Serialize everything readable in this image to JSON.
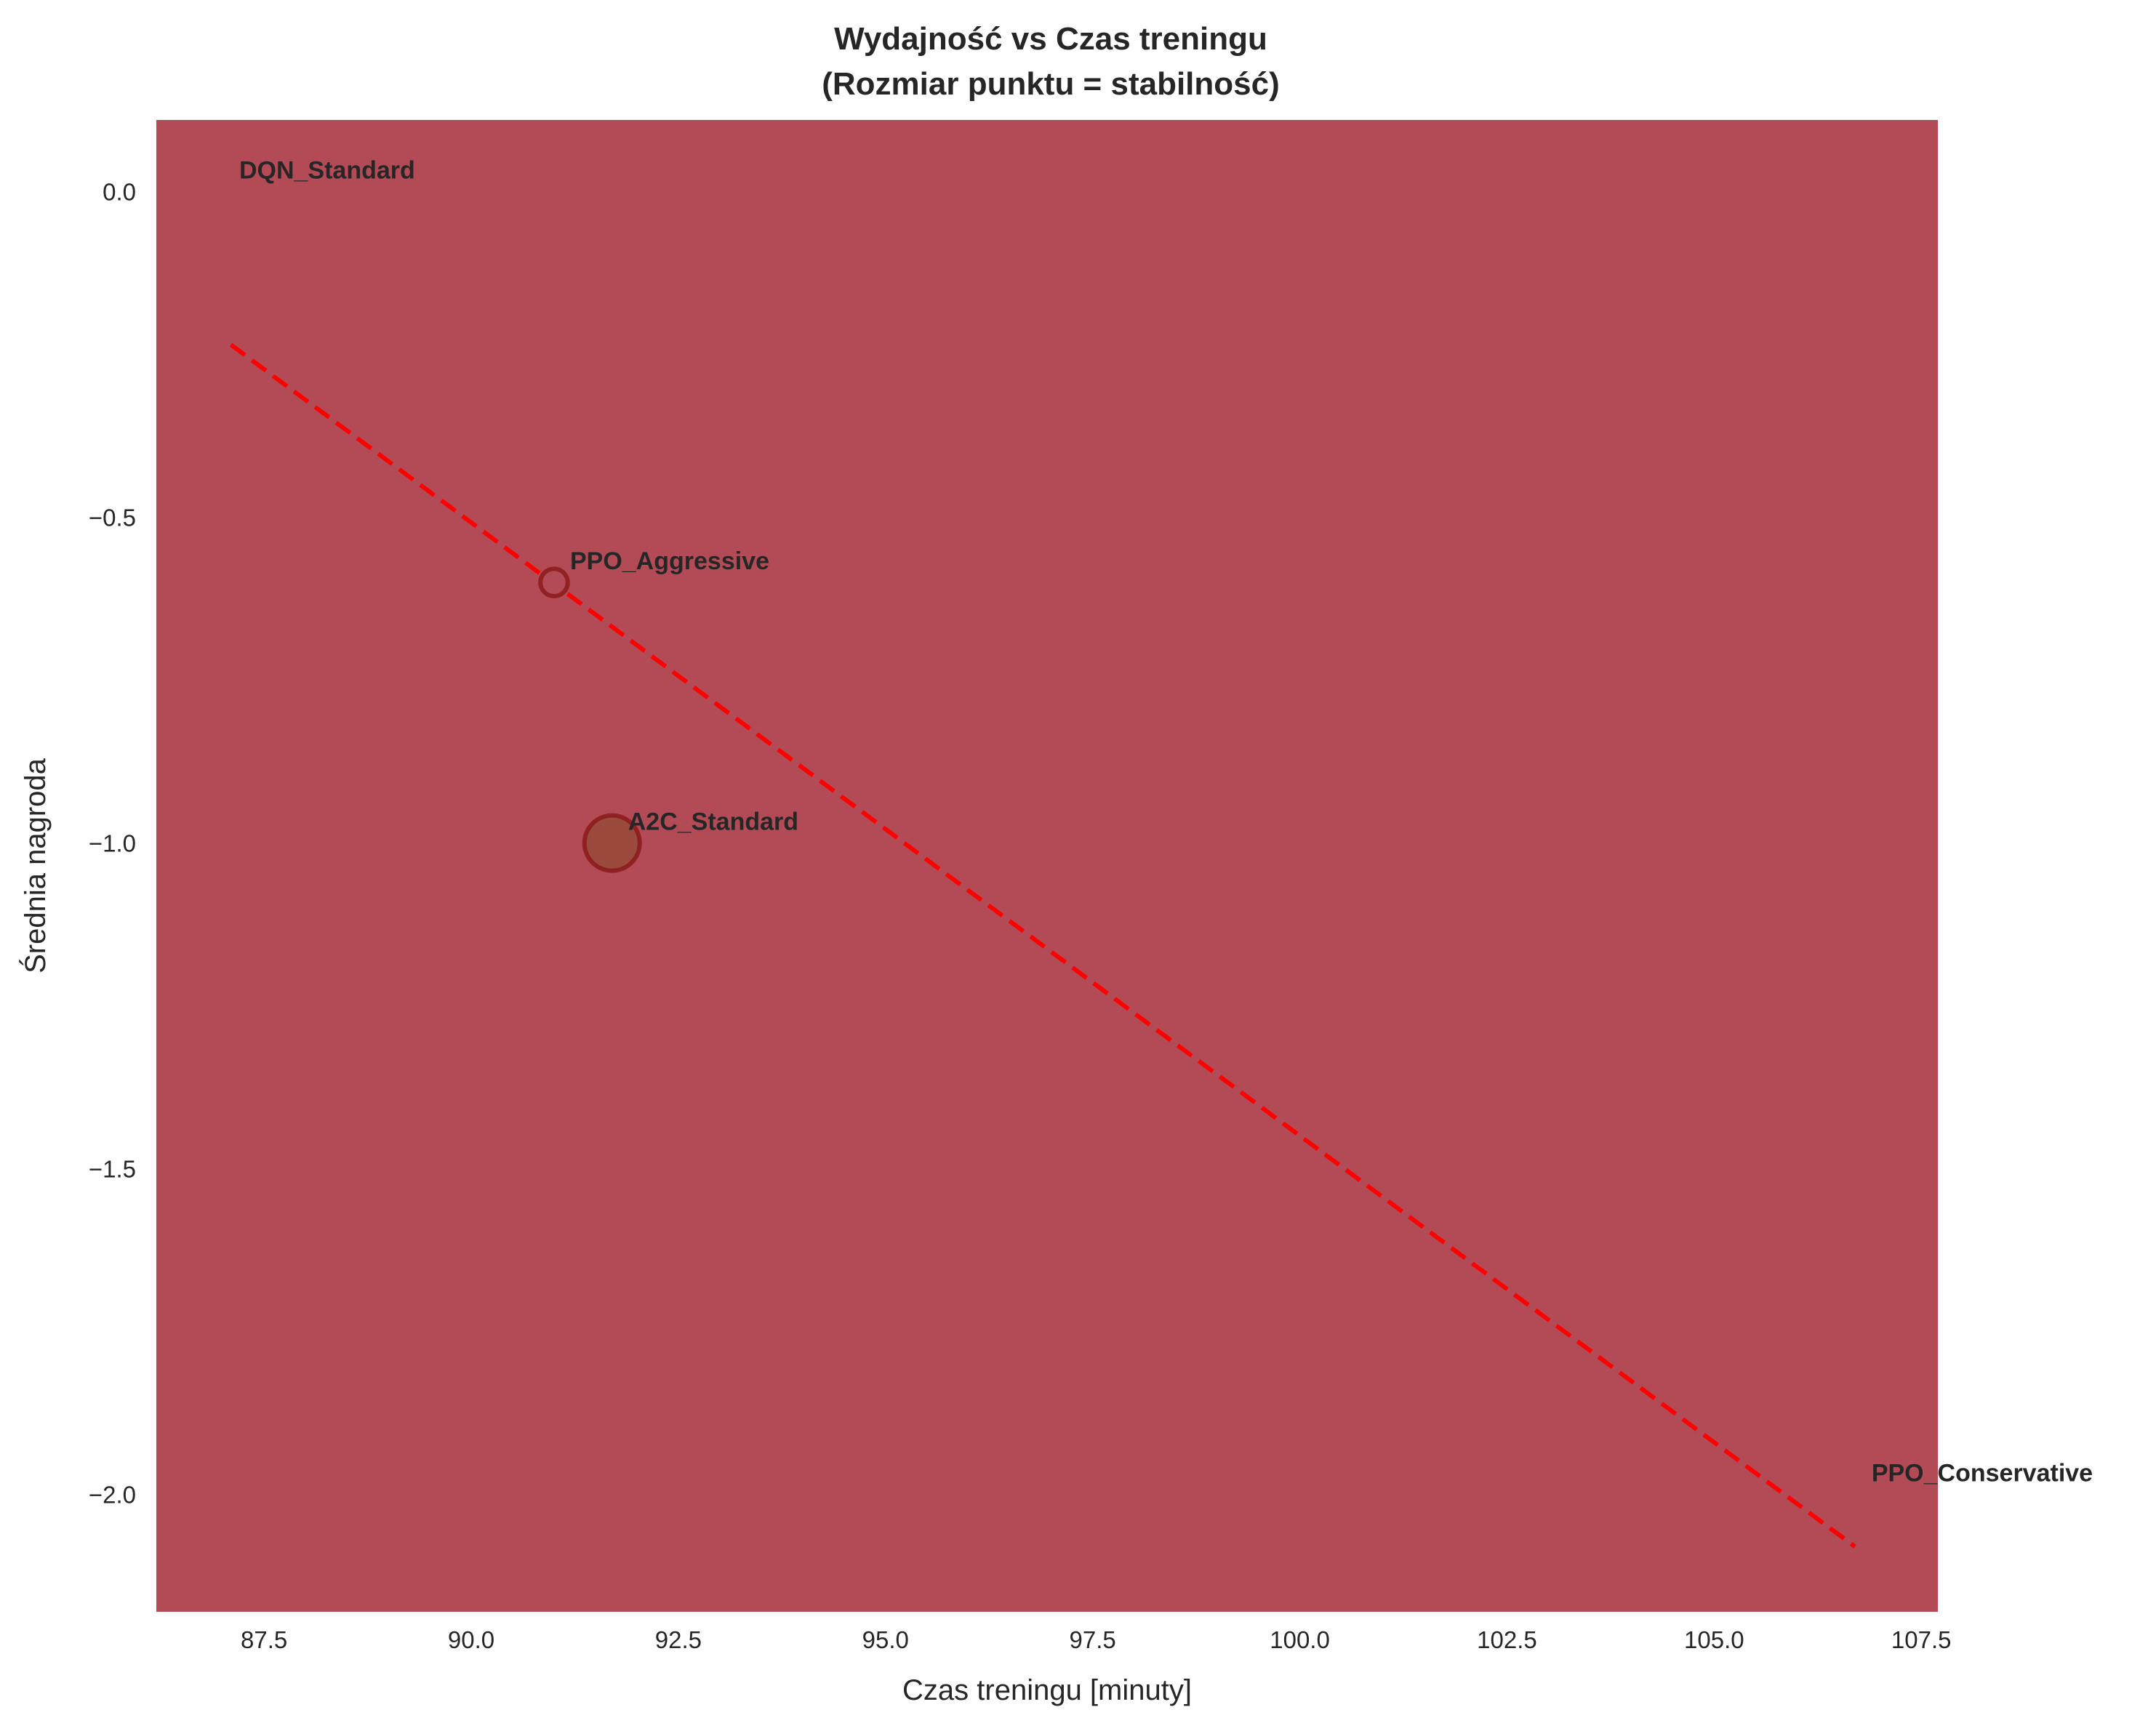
{
  "chart_data": {
    "type": "scatter",
    "title_line1": "Wydajność vs Czas treningu",
    "title_line2": "(Rozmiar punktu = stabilność)",
    "xlabel": "Czas treningu [minuty]",
    "ylabel": "Średnia nagroda",
    "xlim": [
      86.2,
      107.7
    ],
    "ylim": [
      -2.18,
      0.11
    ],
    "xticks": [
      87.5,
      90.0,
      92.5,
      95.0,
      97.5,
      100.0,
      102.5,
      105.0,
      107.5
    ],
    "xtick_labels": [
      "87.5",
      "90.0",
      "92.5",
      "95.0",
      "97.5",
      "100.0",
      "102.5",
      "105.0",
      "107.5"
    ],
    "yticks": [
      0.0,
      -0.5,
      -1.0,
      -1.5,
      -2.0
    ],
    "ytick_labels": [
      "0.0",
      "−0.5",
      "−1.0",
      "−1.5",
      "−2.0"
    ],
    "grid": false,
    "background_color": "#b34b57",
    "points": [
      {
        "name": "DQN_Standard",
        "x": 87.2,
        "y": 0.0,
        "stability": 0,
        "color": "#b34b57"
      },
      {
        "name": "PPO_Aggressive",
        "x": 91.0,
        "y": -0.6,
        "stability": 0.2,
        "color": "#b34b57"
      },
      {
        "name": "A2C_Standard",
        "x": 91.7,
        "y": -1.0,
        "stability": 1.0,
        "color": "#9c4a3e"
      },
      {
        "name": "PPO_Conservative",
        "x": 106.9,
        "y": -2.0,
        "stability": 0,
        "color": "#b34b57"
      }
    ],
    "trend_line": {
      "x": [
        87.1,
        106.7
      ],
      "y": [
        -0.235,
        -2.08
      ],
      "color": "#ff0000",
      "style": "dashed"
    }
  }
}
